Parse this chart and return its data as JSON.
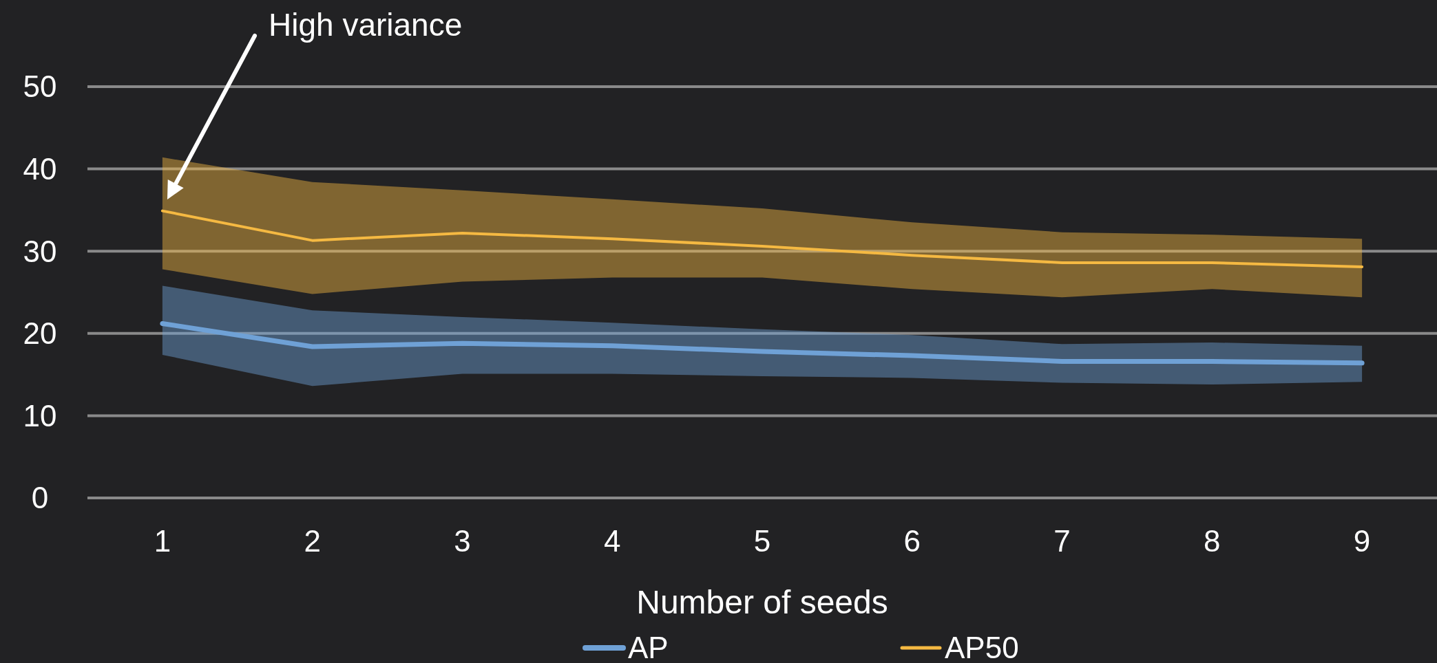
{
  "chart_data": {
    "type": "line",
    "xlabel": "Number of seeds",
    "categories": [
      "1",
      "2",
      "3",
      "4",
      "5",
      "6",
      "7",
      "8",
      "9"
    ],
    "series": [
      {
        "name": "AP",
        "color": "#6fa1d6",
        "values": [
          21.2,
          18.4,
          18.8,
          18.5,
          17.8,
          17.3,
          16.6,
          16.6,
          16.4
        ],
        "lower": [
          17.4,
          13.6,
          15.1,
          15.1,
          14.8,
          14.6,
          14.0,
          13.8,
          14.1
        ],
        "upper": [
          25.8,
          22.8,
          22.0,
          21.3,
          20.5,
          19.8,
          18.7,
          18.9,
          18.5
        ]
      },
      {
        "name": "AP50",
        "color": "#f5b942",
        "values": [
          34.9,
          31.3,
          32.2,
          31.5,
          30.6,
          29.5,
          28.6,
          28.6,
          28.1
        ],
        "lower": [
          27.8,
          24.8,
          26.3,
          26.8,
          26.8,
          25.4,
          24.4,
          25.4,
          24.4
        ],
        "upper": [
          41.4,
          38.4,
          37.4,
          36.3,
          35.2,
          33.5,
          32.3,
          32.0,
          31.5
        ]
      }
    ],
    "ylim": [
      0,
      50
    ],
    "yticks": [
      0,
      10,
      20,
      30,
      40,
      50
    ],
    "grid": "y",
    "legend": "bottom",
    "annotations": [
      "High variance"
    ]
  }
}
